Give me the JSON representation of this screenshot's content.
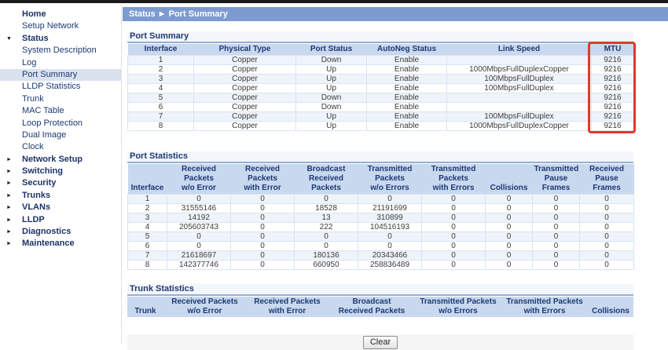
{
  "colors": {
    "top_strip": "#1a1a1a",
    "crumb_bg": "#7d9bd1",
    "header_bg": "#c8d8ee",
    "navy": "#1d3974",
    "selected_bg": "#dae2ef",
    "highlight_red": "#e0392e"
  },
  "header": {
    "breadcrumb": "Status ► Port Summary"
  },
  "sidebar": {
    "items": [
      {
        "label": "Home",
        "bold": true,
        "arrow": "",
        "selected": false
      },
      {
        "label": "Setup Network",
        "bold": false,
        "arrow": "",
        "selected": false
      },
      {
        "label": "Status",
        "bold": true,
        "arrow": "▼",
        "selected": false
      },
      {
        "label": "System Description",
        "bold": false,
        "arrow": "",
        "selected": false
      },
      {
        "label": "Log",
        "bold": false,
        "arrow": "",
        "selected": false
      },
      {
        "label": "Port Summary",
        "bold": false,
        "arrow": "",
        "selected": true
      },
      {
        "label": "LLDP Statistics",
        "bold": false,
        "arrow": "",
        "selected": false
      },
      {
        "label": "Trunk",
        "bold": false,
        "arrow": "",
        "selected": false
      },
      {
        "label": "MAC Table",
        "bold": false,
        "arrow": "",
        "selected": false
      },
      {
        "label": "Loop Protection",
        "bold": false,
        "arrow": "",
        "selected": false
      },
      {
        "label": "Dual Image",
        "bold": false,
        "arrow": "",
        "selected": false
      },
      {
        "label": "Clock",
        "bold": false,
        "arrow": "",
        "selected": false
      },
      {
        "label": "Network Setup",
        "bold": true,
        "arrow": "►",
        "selected": false
      },
      {
        "label": "Switching",
        "bold": true,
        "arrow": "►",
        "selected": false
      },
      {
        "label": "Security",
        "bold": true,
        "arrow": "►",
        "selected": false
      },
      {
        "label": "Trunks",
        "bold": true,
        "arrow": "►",
        "selected": false
      },
      {
        "label": "VLANs",
        "bold": true,
        "arrow": "►",
        "selected": false
      },
      {
        "label": "LLDP",
        "bold": true,
        "arrow": "►",
        "selected": false
      },
      {
        "label": "Diagnostics",
        "bold": true,
        "arrow": "►",
        "selected": false
      },
      {
        "label": "Maintenance",
        "bold": true,
        "arrow": "►",
        "selected": false
      }
    ]
  },
  "port_summary": {
    "title": "Port Summary",
    "columns": [
      "Interface",
      "Physical Type",
      "Port Status",
      "AutoNeg Status",
      "Link Speed",
      "MTU"
    ],
    "rows": [
      [
        "1",
        "Copper",
        "Down",
        "Enable",
        "",
        "9216"
      ],
      [
        "2",
        "Copper",
        "Up",
        "Enable",
        "1000MbpsFullDuplexCopper",
        "9216"
      ],
      [
        "3",
        "Copper",
        "Up",
        "Enable",
        "100MbpsFullDuplex",
        "9216"
      ],
      [
        "4",
        "Copper",
        "Up",
        "Enable",
        "100MbpsFullDuplex",
        "9216"
      ],
      [
        "5",
        "Copper",
        "Down",
        "Enable",
        "",
        "9216"
      ],
      [
        "6",
        "Copper",
        "Down",
        "Enable",
        "",
        "9216"
      ],
      [
        "7",
        "Copper",
        "Up",
        "Enable",
        "100MbpsFullDuplex",
        "9216"
      ],
      [
        "8",
        "Copper",
        "Up",
        "Enable",
        "1000MbpsFullDuplexCopper",
        "9216"
      ]
    ]
  },
  "port_statistics": {
    "title": "Port Statistics",
    "columns": [
      "Interface",
      "Received\nPackets\nw/o Error",
      "Received\nPackets\nwith Error",
      "Broadcast\nReceived\nPackets",
      "Transmitted\nPackets\nw/o Errors",
      "Transmitted\nPackets\nwith Errors",
      "Collisions",
      "Transmitted\nPause\nFrames",
      "Received\nPause\nFrames"
    ],
    "rows": [
      [
        "1",
        "0",
        "0",
        "0",
        "0",
        "0",
        "0",
        "0",
        "0"
      ],
      [
        "2",
        "31555146",
        "0",
        "18528",
        "21191699",
        "0",
        "0",
        "0",
        "0"
      ],
      [
        "3",
        "14192",
        "0",
        "13",
        "310899",
        "0",
        "0",
        "0",
        "0"
      ],
      [
        "4",
        "205603743",
        "0",
        "222",
        "104516193",
        "0",
        "0",
        "0",
        "0"
      ],
      [
        "5",
        "0",
        "0",
        "0",
        "0",
        "0",
        "0",
        "0",
        "0"
      ],
      [
        "6",
        "0",
        "0",
        "0",
        "0",
        "0",
        "0",
        "0",
        "0"
      ],
      [
        "7",
        "21618697",
        "0",
        "180136",
        "20343466",
        "0",
        "0",
        "0",
        "0"
      ],
      [
        "8",
        "142377746",
        "0",
        "660950",
        "258836489",
        "0",
        "0",
        "0",
        "0"
      ]
    ]
  },
  "trunk_statistics": {
    "title": "Trunk Statistics",
    "columns": [
      "Trunk",
      "Received Packets\nw/o Error",
      "Received Packets\nwith Error",
      "Broadcast\nReceived Packets",
      "Transmitted Packets\nw/o Errors",
      "Transmitted Packets\nwith Errors",
      "Collisions"
    ],
    "rows": []
  },
  "actions": {
    "clear_label": "Clear"
  }
}
